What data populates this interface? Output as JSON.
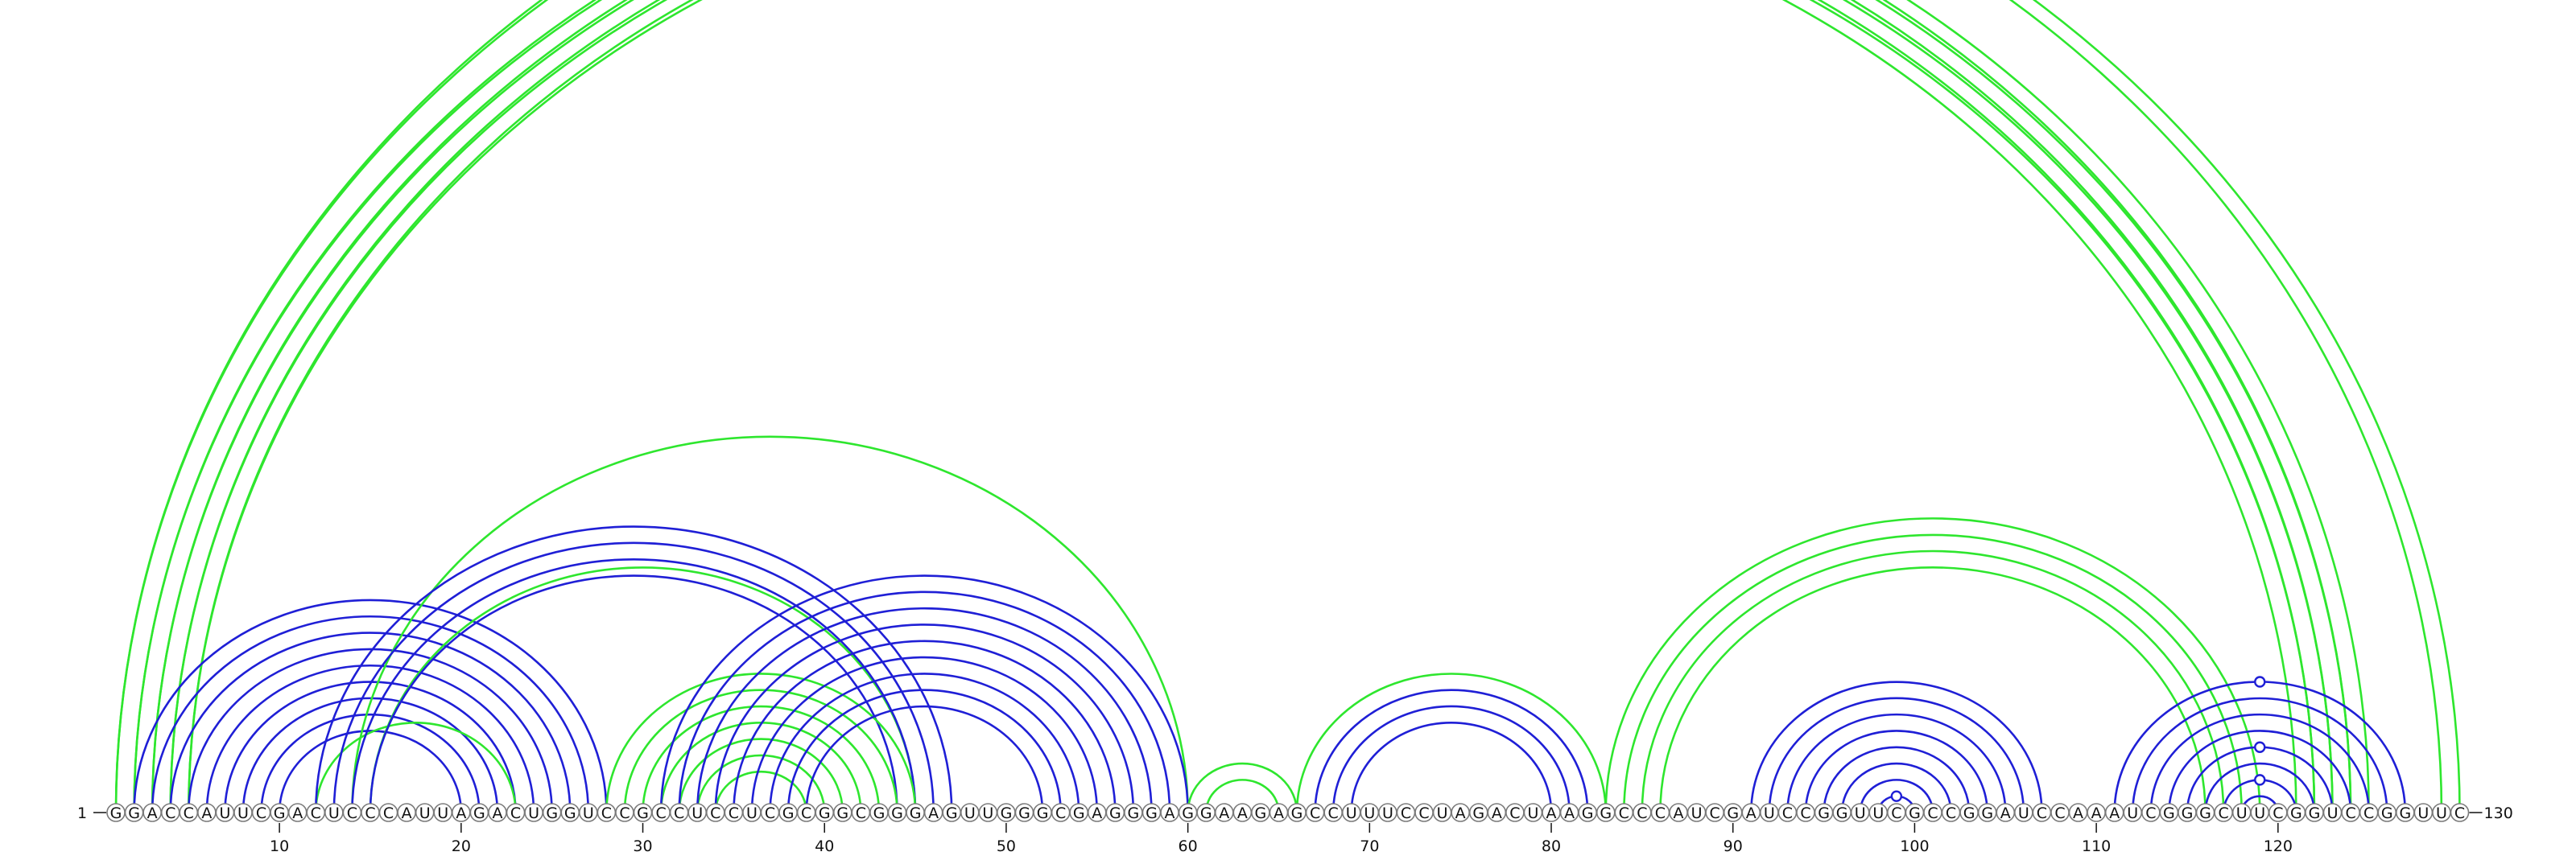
{
  "sequence": "GGACCAUUCGACUCCCAUUAGACUGGUCCGCCUCCUCGCGGCGGGAGUUGGGCGAGGGAGGAAGAGCCUUUCCUAGACUAAGGCCCAUCGAUCCGGUUCGCCGGAUCCAAAUCGGGCUUCGGUCCGGUUC",
  "start_label": "1",
  "end_label": "130",
  "tick_labels": [
    "10",
    "20",
    "30",
    "40",
    "50",
    "60",
    "70",
    "80",
    "90",
    "100",
    "110",
    "120"
  ],
  "colors": {
    "blue": "#1f1fd6",
    "green": "#2ee62e",
    "circle_stroke": "#7a7a7a"
  },
  "markers": [
    "circle-marker-green-outer",
    "circle-marker-blue-119-a",
    "circle-marker-blue-119-b",
    "circle-marker-blue-119-c",
    "circle-marker-blue-98"
  ],
  "arcs": [
    {
      "i": 1,
      "j": 129,
      "color": "green"
    },
    {
      "i": 1,
      "j": 130,
      "color": "green"
    },
    {
      "i": 2,
      "j": 124,
      "color": "green"
    },
    {
      "i": 2,
      "j": 125,
      "color": "green"
    },
    {
      "i": 3,
      "j": 123,
      "color": "green"
    },
    {
      "i": 3,
      "j": 124,
      "color": "green"
    },
    {
      "i": 4,
      "j": 122,
      "color": "green"
    },
    {
      "i": 4,
      "j": 123,
      "color": "green"
    },
    {
      "i": 5,
      "j": 121,
      "color": "green"
    },
    {
      "i": 5,
      "j": 122,
      "color": "green"
    },
    {
      "i": 2,
      "j": 28,
      "color": "blue"
    },
    {
      "i": 3,
      "j": 27,
      "color": "blue"
    },
    {
      "i": 4,
      "j": 26,
      "color": "blue"
    },
    {
      "i": 5,
      "j": 25,
      "color": "blue"
    },
    {
      "i": 6,
      "j": 24,
      "color": "blue"
    },
    {
      "i": 7,
      "j": 23,
      "color": "blue"
    },
    {
      "i": 8,
      "j": 22,
      "color": "blue"
    },
    {
      "i": 9,
      "j": 21,
      "color": "blue"
    },
    {
      "i": 10,
      "j": 20,
      "color": "blue"
    },
    {
      "i": 12,
      "j": 23,
      "color": "green"
    },
    {
      "i": 14,
      "j": 60,
      "color": "green"
    },
    {
      "i": 15,
      "j": 45,
      "color": "green"
    },
    {
      "i": 12,
      "j": 47,
      "color": "blue"
    },
    {
      "i": 13,
      "j": 46,
      "color": "blue"
    },
    {
      "i": 14,
      "j": 45,
      "color": "blue"
    },
    {
      "i": 15,
      "j": 44,
      "color": "blue"
    },
    {
      "i": 28,
      "j": 45,
      "color": "green"
    },
    {
      "i": 29,
      "j": 44,
      "color": "green"
    },
    {
      "i": 30,
      "j": 43,
      "color": "green"
    },
    {
      "i": 31,
      "j": 42,
      "color": "green"
    },
    {
      "i": 32,
      "j": 41,
      "color": "green"
    },
    {
      "i": 33,
      "j": 40,
      "color": "green"
    },
    {
      "i": 34,
      "j": 39,
      "color": "green"
    },
    {
      "i": 31,
      "j": 60,
      "color": "blue"
    },
    {
      "i": 32,
      "j": 59,
      "color": "blue"
    },
    {
      "i": 33,
      "j": 58,
      "color": "blue"
    },
    {
      "i": 34,
      "j": 57,
      "color": "blue"
    },
    {
      "i": 35,
      "j": 56,
      "color": "blue"
    },
    {
      "i": 36,
      "j": 55,
      "color": "blue"
    },
    {
      "i": 37,
      "j": 54,
      "color": "blue"
    },
    {
      "i": 38,
      "j": 53,
      "color": "blue"
    },
    {
      "i": 39,
      "j": 52,
      "color": "blue"
    },
    {
      "i": 60,
      "j": 66,
      "color": "green"
    },
    {
      "i": 61,
      "j": 65,
      "color": "green"
    },
    {
      "i": 66,
      "j": 83,
      "color": "green"
    },
    {
      "i": 67,
      "j": 82,
      "color": "blue"
    },
    {
      "i": 68,
      "j": 81,
      "color": "blue"
    },
    {
      "i": 69,
      "j": 80,
      "color": "blue"
    },
    {
      "i": 83,
      "j": 119,
      "color": "green"
    },
    {
      "i": 84,
      "j": 118,
      "color": "green"
    },
    {
      "i": 85,
      "j": 117,
      "color": "green"
    },
    {
      "i": 86,
      "j": 116,
      "color": "green"
    },
    {
      "i": 91,
      "j": 107,
      "color": "blue"
    },
    {
      "i": 92,
      "j": 106,
      "color": "blue"
    },
    {
      "i": 93,
      "j": 105,
      "color": "blue"
    },
    {
      "i": 94,
      "j": 104,
      "color": "blue"
    },
    {
      "i": 95,
      "j": 103,
      "color": "blue"
    },
    {
      "i": 96,
      "j": 102,
      "color": "blue"
    },
    {
      "i": 97,
      "j": 101,
      "color": "blue"
    },
    {
      "i": 98,
      "j": 100,
      "color": "blue"
    },
    {
      "i": 111,
      "j": 127,
      "color": "blue"
    },
    {
      "i": 112,
      "j": 126,
      "color": "blue"
    },
    {
      "i": 113,
      "j": 125,
      "color": "blue"
    },
    {
      "i": 114,
      "j": 124,
      "color": "blue"
    },
    {
      "i": 115,
      "j": 123,
      "color": "blue"
    },
    {
      "i": 116,
      "j": 122,
      "color": "blue"
    },
    {
      "i": 117,
      "j": 121,
      "color": "blue"
    },
    {
      "i": 118,
      "j": 120,
      "color": "blue"
    }
  ]
}
